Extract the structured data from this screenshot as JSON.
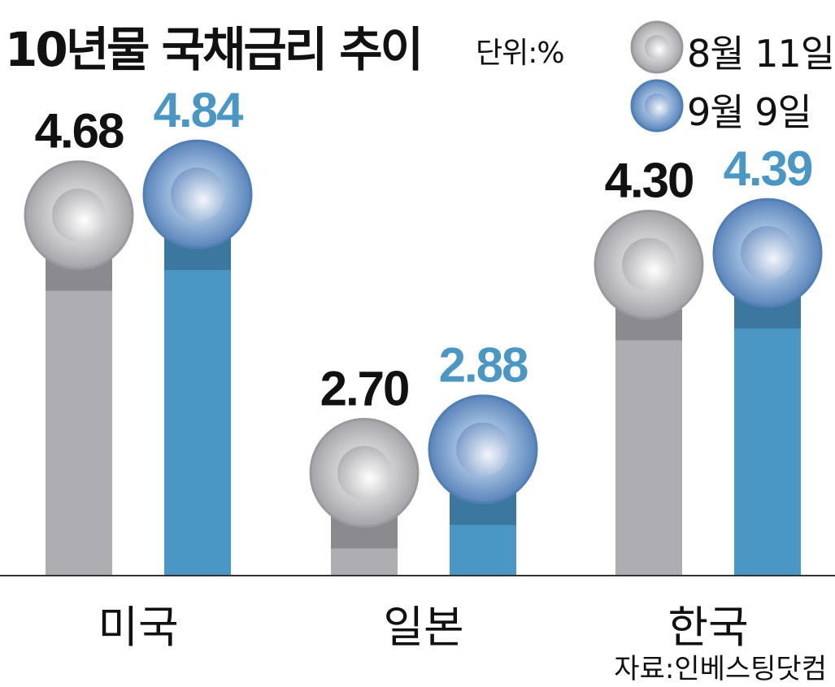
{
  "chart_data": {
    "type": "bar",
    "title": "10년물 국채금리 추이",
    "unit": "단위:%",
    "categories": [
      "미국",
      "일본",
      "한국"
    ],
    "series": [
      {
        "name": "8월 11일",
        "values": [
          "4.68",
          "2.70",
          "4.30"
        ],
        "color": "#aeaeb2",
        "label_color": "#111111"
      },
      {
        "name": "9월 9일",
        "values": [
          "4.84",
          "2.88",
          "4.39"
        ],
        "color": "#4a96c4",
        "label_color": "#4a96c4"
      }
    ],
    "legend_position": "top-right",
    "grid": false,
    "source": "자료:인베스팅닷컴"
  }
}
